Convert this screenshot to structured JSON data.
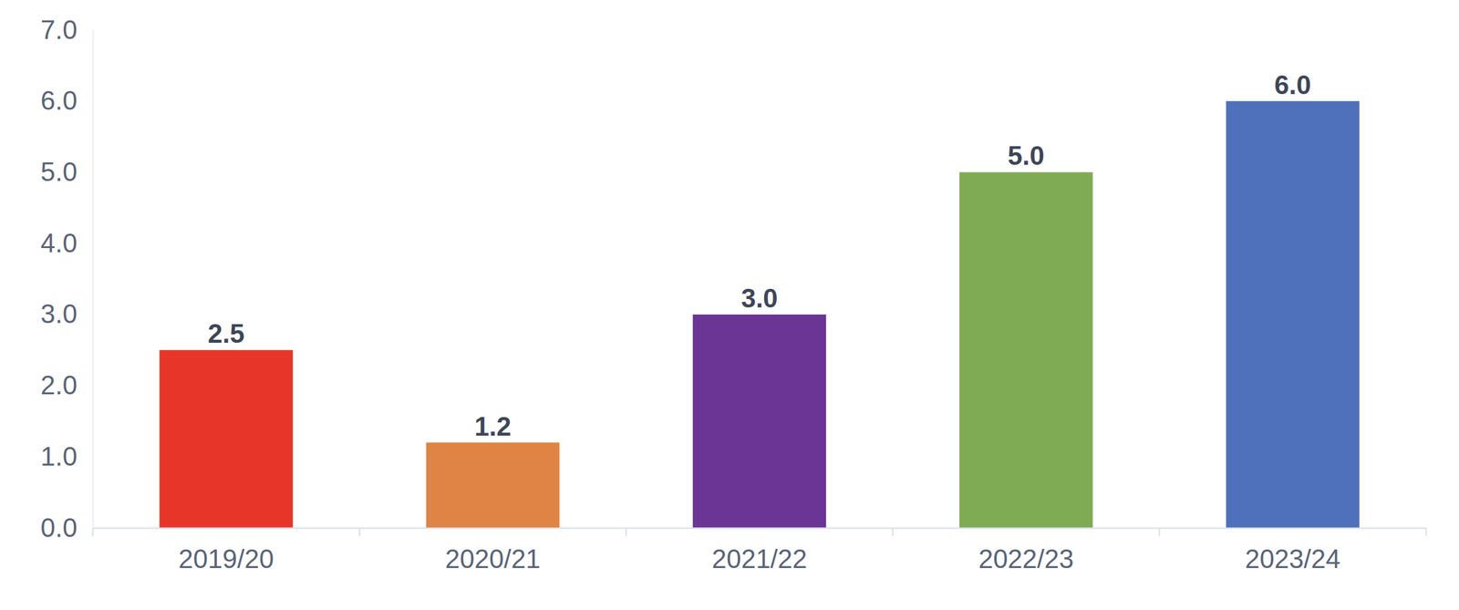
{
  "chart_data": {
    "type": "bar",
    "categories": [
      "2019/20",
      "2020/21",
      "2021/22",
      "2022/23",
      "2023/24"
    ],
    "values": [
      2.5,
      1.2,
      3.0,
      5.0,
      6.0
    ],
    "value_labels": [
      "2.5",
      "1.2",
      "3.0",
      "5.0",
      "6.0"
    ],
    "colors": [
      "#e8352a",
      "#df8444",
      "#6a3594",
      "#7fab55",
      "#4f70bb"
    ],
    "ylim": [
      0,
      7
    ],
    "yticks": [
      {
        "value": 0,
        "label": "0.0"
      },
      {
        "value": 1,
        "label": "1.0"
      },
      {
        "value": 2,
        "label": "2.0"
      },
      {
        "value": 3,
        "label": "3.0"
      },
      {
        "value": 4,
        "label": "4.0"
      },
      {
        "value": 5,
        "label": "5.0"
      },
      {
        "value": 6,
        "label": "6.0"
      },
      {
        "value": 7,
        "label": "7.0"
      }
    ],
    "grid": false,
    "data_labels": true
  }
}
